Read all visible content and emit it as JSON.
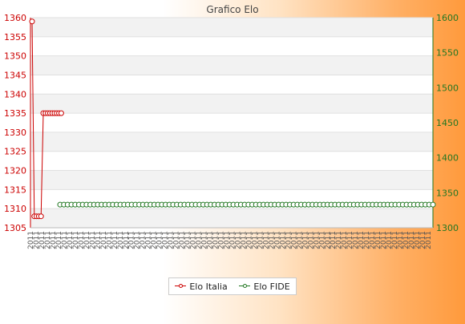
{
  "chart_data": {
    "type": "line",
    "title": "Grafico Elo",
    "grid": true,
    "legend_position": "bottom-center",
    "colors": {
      "elo_italia": "#cc0000",
      "elo_fide": "#227722"
    },
    "y_left": {
      "ylim": [
        1305,
        1360
      ],
      "ticks": [
        "1305",
        "1310",
        "1315",
        "1320",
        "1325",
        "1330",
        "1335",
        "1340",
        "1345",
        "1350",
        "1355",
        "1360"
      ]
    },
    "y_right": {
      "ylim": [
        1300,
        1600
      ],
      "ticks": [
        "1300",
        "1350",
        "1400",
        "1450",
        "1500",
        "1550",
        "1600"
      ]
    },
    "x_tick_label": "2011",
    "series": [
      {
        "name": "Elo Italia",
        "axis": "left",
        "values": [
          1359,
          1308,
          1308,
          1308,
          1308,
          1335,
          1335,
          1335,
          1335,
          1335,
          1335,
          1335,
          1335,
          1335
        ]
      },
      {
        "name": "Elo FIDE",
        "axis": "right",
        "values": [
          1333,
          1333,
          1333,
          1333,
          1333,
          1333,
          1333,
          1333,
          1333,
          1333,
          1333,
          1333,
          1333,
          1333,
          1333,
          1333,
          1333,
          1333,
          1333,
          1333,
          1333,
          1333,
          1333,
          1333,
          1333,
          1333,
          1333,
          1333,
          1333,
          1333,
          1333,
          1333,
          1333,
          1333,
          1333,
          1333,
          1333,
          1333,
          1333,
          1333,
          1333,
          1333,
          1333,
          1333,
          1333,
          1333,
          1333,
          1333,
          1333,
          1333,
          1333,
          1333,
          1333,
          1333,
          1333,
          1333,
          1333,
          1333,
          1333,
          1333,
          1333,
          1333,
          1333,
          1333,
          1333,
          1333,
          1333,
          1333,
          1333,
          1333,
          1333,
          1333,
          1333,
          1333,
          1333,
          1333,
          1333,
          1333,
          1333,
          1333,
          1333,
          1333,
          1333,
          1333,
          1333,
          1333,
          1333,
          1333,
          1333,
          1333,
          1333,
          1333,
          1333,
          1333,
          1333,
          1333,
          1333,
          1333,
          1333,
          1333
        ]
      }
    ]
  }
}
